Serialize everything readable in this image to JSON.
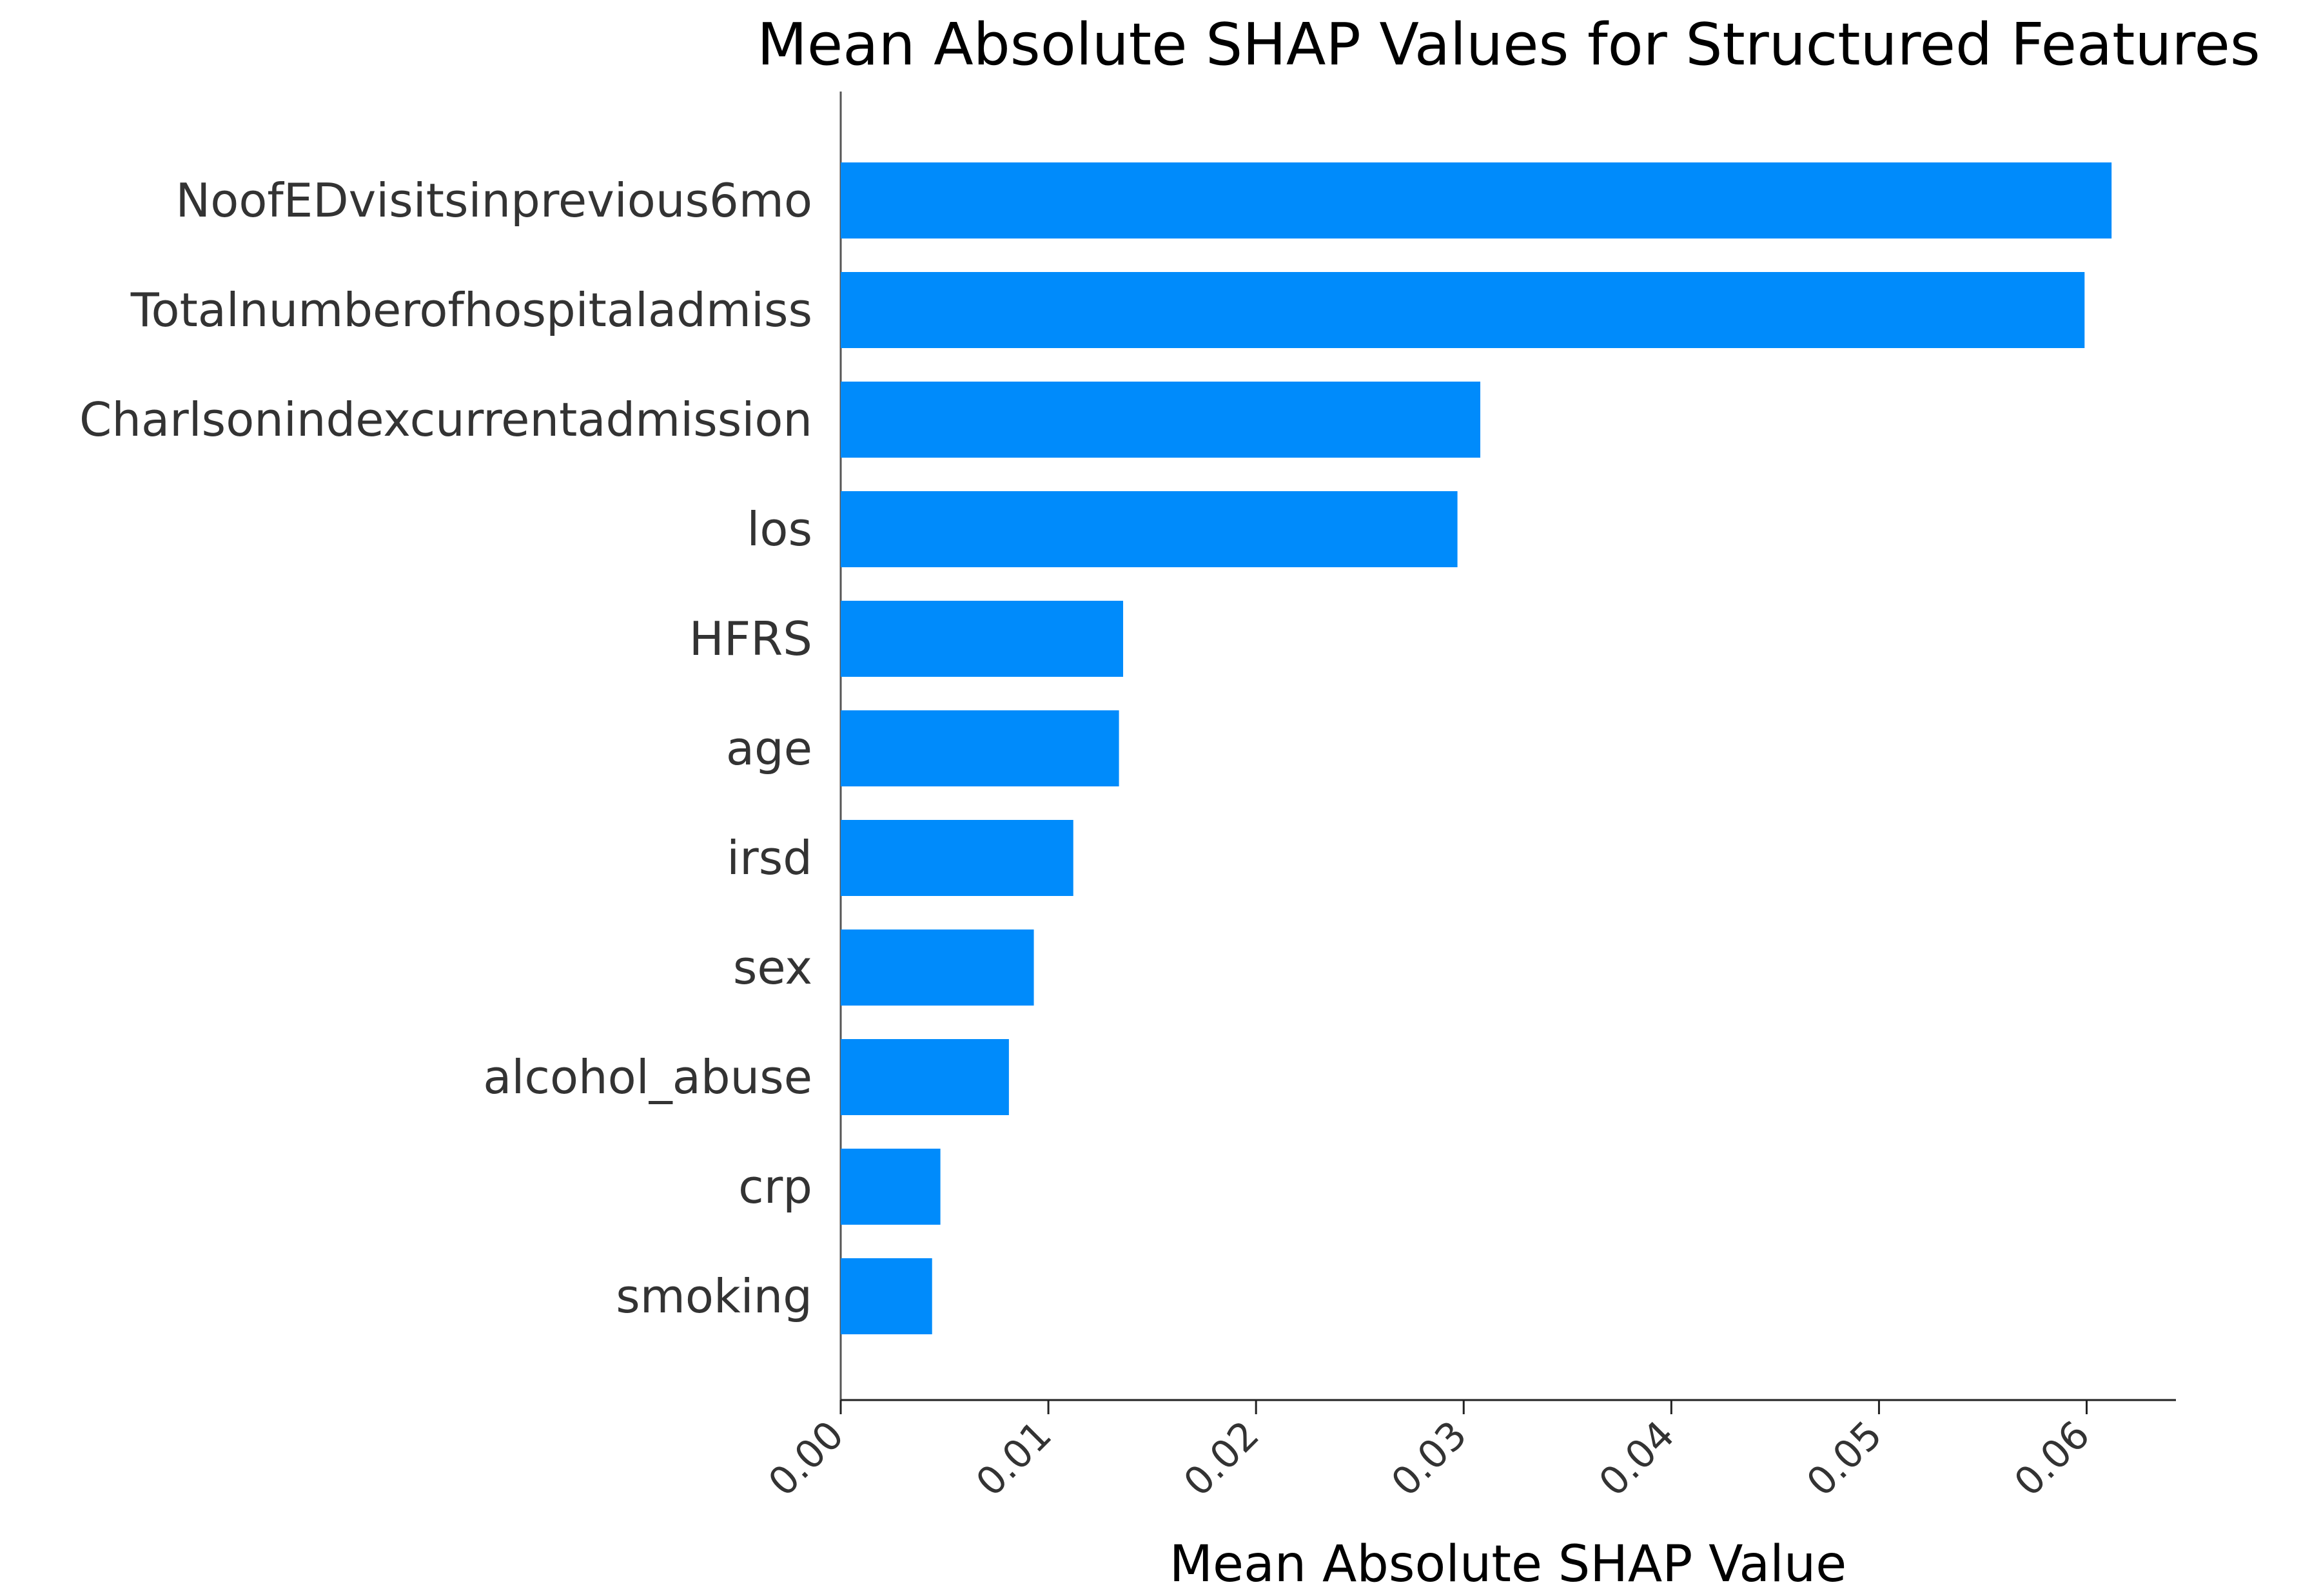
{
  "chart_data": {
    "type": "bar",
    "orientation": "horizontal",
    "title": "Mean Absolute SHAP Values for Structured Features",
    "xlabel": "Mean Absolute SHAP Value",
    "ylabel": "",
    "categories": [
      "NoofEDvisitsinprevious6mo",
      "Totalnumberofhospitaladmiss",
      "Charlsonindexcurrentadmission",
      "los",
      "HFRS",
      "age",
      "irsd",
      "sex",
      "alcohol_abuse",
      "crp",
      "smoking"
    ],
    "values": [
      0.0612,
      0.0599,
      0.0308,
      0.0297,
      0.0136,
      0.0134,
      0.0112,
      0.0093,
      0.0081,
      0.0048,
      0.0044
    ],
    "xlim": [
      0,
      0.0643
    ],
    "xticks": [
      "0.00",
      "0.01",
      "0.02",
      "0.03",
      "0.04",
      "0.05",
      "0.06"
    ],
    "xtick_values": [
      0,
      0.01,
      0.02,
      0.03,
      0.04,
      0.05,
      0.06
    ],
    "bar_color": "#008bfb",
    "grid": false,
    "legend": "none"
  }
}
